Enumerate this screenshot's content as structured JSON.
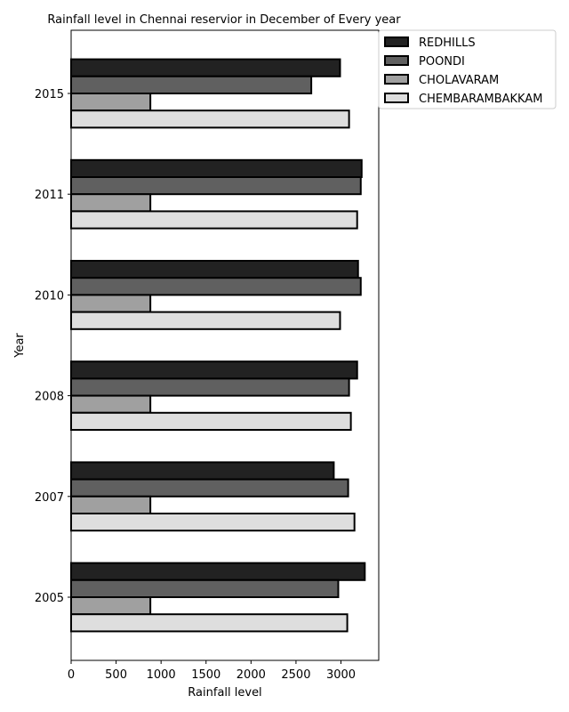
{
  "chart_data": {
    "type": "bar",
    "orientation": "horizontal",
    "title": "Rainfall level in Chennai reservior in  December of Every year",
    "xlabel": "Rainfall level",
    "ylabel": "Year",
    "xlim": [
      0,
      3420
    ],
    "xticks": [
      0,
      500,
      1000,
      1500,
      2000,
      2500,
      3000
    ],
    "categories": [
      "2005",
      "2007",
      "2008",
      "2010",
      "2011",
      "2015"
    ],
    "legend_position": "outside-top-right",
    "grid": false,
    "series": [
      {
        "name": "REDHILLS",
        "color": "#222222",
        "values": [
          3265,
          2920,
          3180,
          3190,
          3230,
          2990
        ]
      },
      {
        "name": "POONDI",
        "color": "#606060",
        "values": [
          2970,
          3080,
          3090,
          3220,
          3220,
          2670
        ]
      },
      {
        "name": "CHOLAVARAM",
        "color": "#a0a0a0",
        "values": [
          881,
          881,
          881,
          881,
          881,
          881
        ]
      },
      {
        "name": "CHEMBARAMBAKKAM",
        "color": "#dedede",
        "values": [
          3070,
          3150,
          3110,
          2990,
          3180,
          3090
        ]
      }
    ]
  }
}
